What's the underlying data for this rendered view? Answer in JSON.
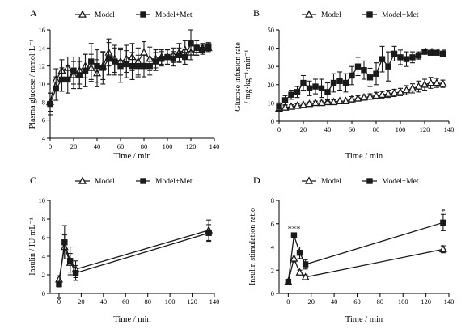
{
  "chart_data": [
    {
      "type": "line",
      "panel_label": "A",
      "xlabel": "Time / min",
      "ylabel": "Plasma glucose / mmol·L⁻¹",
      "xlim": [
        0,
        140
      ],
      "ylim": [
        4,
        16
      ],
      "xticks": [
        0,
        20,
        40,
        60,
        80,
        100,
        120,
        140
      ],
      "yticks": [
        4,
        6,
        8,
        10,
        12,
        14,
        16
      ],
      "series": [
        {
          "name": "Model",
          "marker": "triangle",
          "x": [
            0,
            5,
            10,
            15,
            20,
            25,
            30,
            35,
            40,
            45,
            50,
            55,
            60,
            65,
            70,
            75,
            80,
            85,
            90,
            95,
            100,
            105,
            110,
            115,
            120,
            125,
            130,
            135
          ],
          "y": [
            8.0,
            10.5,
            11.5,
            11.8,
            11.0,
            11.5,
            12.0,
            11.8,
            11.2,
            12.0,
            13.5,
            12.8,
            12.5,
            12.8,
            13.0,
            12.5,
            13.5,
            12.8,
            12.8,
            13.0,
            13.0,
            13.2,
            13.5,
            13.8,
            13.5,
            13.8,
            14.0,
            14.0
          ],
          "err": [
            1.0,
            1.2,
            1.2,
            1.2,
            1.5,
            1.5,
            1.3,
            1.5,
            1.5,
            1.5,
            1.5,
            1.5,
            1.5,
            1.5,
            1.5,
            1.5,
            1.2,
            1.3,
            1.0,
            0.8,
            0.8,
            0.8,
            1.0,
            1.0,
            0.8,
            0.6,
            0.5,
            0.4
          ]
        },
        {
          "name": "Model+Met",
          "marker": "square",
          "x": [
            0,
            5,
            10,
            15,
            20,
            25,
            30,
            35,
            40,
            45,
            50,
            55,
            60,
            65,
            70,
            75,
            80,
            85,
            90,
            95,
            100,
            105,
            110,
            115,
            120,
            125,
            130,
            135
          ],
          "y": [
            7.8,
            9.5,
            10.5,
            10.5,
            11.5,
            11.0,
            11.5,
            12.5,
            12.0,
            11.8,
            12.8,
            12.5,
            12.0,
            12.2,
            12.0,
            12.0,
            12.0,
            12.0,
            12.5,
            12.8,
            13.0,
            12.8,
            13.2,
            13.0,
            14.5,
            14.0,
            13.8,
            14.2
          ],
          "err": [
            1.2,
            1.3,
            1.3,
            1.5,
            1.5,
            1.5,
            1.8,
            2.0,
            1.8,
            1.8,
            1.8,
            1.5,
            1.8,
            1.5,
            1.5,
            1.2,
            1.2,
            1.0,
            1.0,
            0.8,
            0.8,
            0.8,
            0.8,
            0.8,
            1.5,
            0.8,
            0.5,
            0.4
          ]
        }
      ],
      "annotations": []
    },
    {
      "type": "line",
      "panel_label": "B",
      "xlabel": "Time / min",
      "ylabel": "Glucose infusion rate / mg·kg⁻¹·min⁻¹",
      "xlim": [
        0,
        140
      ],
      "ylim": [
        0,
        50
      ],
      "xticks": [
        0,
        20,
        40,
        60,
        80,
        100,
        120,
        140
      ],
      "yticks": [
        0,
        10,
        20,
        30,
        40,
        50
      ],
      "series": [
        {
          "name": "Model",
          "marker": "triangle",
          "x": [
            0,
            5,
            10,
            15,
            20,
            25,
            30,
            35,
            40,
            45,
            50,
            55,
            60,
            65,
            70,
            75,
            80,
            85,
            90,
            95,
            100,
            105,
            110,
            115,
            120,
            125,
            130,
            135
          ],
          "y": [
            7,
            7.5,
            8,
            8.5,
            9,
            9.5,
            10,
            10,
            10.5,
            10.5,
            11,
            11,
            12,
            12.5,
            13,
            13.5,
            14,
            14.5,
            15,
            15.5,
            16,
            17,
            18,
            19,
            20,
            21,
            21,
            20.5
          ],
          "err": [
            1,
            1,
            1,
            1,
            1,
            1,
            1,
            1,
            1.2,
            1.2,
            1.2,
            1.2,
            1.5,
            1.5,
            1.5,
            1.5,
            1.8,
            1.8,
            2,
            2,
            2,
            2.5,
            2.5,
            3,
            3,
            3,
            2.5,
            2
          ]
        },
        {
          "name": "Model+Met",
          "marker": "square",
          "x": [
            0,
            5,
            10,
            15,
            20,
            25,
            30,
            35,
            40,
            45,
            50,
            55,
            60,
            65,
            70,
            75,
            80,
            85,
            90,
            95,
            100,
            105,
            110,
            115,
            120,
            125,
            130,
            135
          ],
          "y": [
            8,
            11.5,
            14.5,
            16,
            21,
            18,
            19,
            18,
            16,
            21,
            22,
            21,
            25,
            30,
            28,
            24,
            26,
            34,
            30,
            37,
            35,
            34,
            35,
            36,
            38,
            37.5,
            37.5,
            37
          ],
          "err": [
            2,
            2.5,
            2.5,
            3,
            4,
            4,
            4,
            5,
            5,
            5,
            5,
            5,
            5,
            5,
            5,
            5,
            6,
            7,
            8,
            4,
            4,
            4,
            3,
            2,
            1.2,
            1.2,
            1.2,
            1.2
          ]
        }
      ],
      "annotations": [
        {
          "text": "*",
          "x": 121,
          "y": 39
        },
        {
          "text": "*",
          "x": 126,
          "y": 39
        },
        {
          "text": "*",
          "x": 131,
          "y": 39
        },
        {
          "text": "*",
          "x": 136,
          "y": 38.5
        }
      ]
    },
    {
      "type": "line",
      "panel_label": "C",
      "xlabel": "Time / min",
      "ylabel": "Insulin / IU·mL⁻¹",
      "xlim": [
        -8,
        140
      ],
      "ylim": [
        0,
        10
      ],
      "xticks": [
        0,
        20,
        40,
        60,
        80,
        100,
        120,
        140
      ],
      "yticks": [
        0,
        2,
        4,
        6,
        8,
        10
      ],
      "series": [
        {
          "name": "Model",
          "marker": "triangle",
          "x": [
            0,
            5,
            10,
            15,
            135
          ],
          "y": [
            1.5,
            5.0,
            3.3,
            2.6,
            6.8
          ],
          "err": [
            0.4,
            1.3,
            1.0,
            0.9,
            1.1
          ]
        },
        {
          "name": "Model+Met",
          "marker": "square",
          "x": [
            0,
            5,
            10,
            15,
            135
          ],
          "y": [
            1.0,
            5.5,
            3.5,
            2.2,
            6.5
          ],
          "err": [
            0.3,
            1.8,
            1.5,
            0.8,
            0.9
          ]
        }
      ],
      "annotations": [
        {
          "text": "*",
          "x": 0,
          "y": -0.6
        }
      ]
    },
    {
      "type": "line",
      "panel_label": "D",
      "xlabel": "Time / min",
      "ylabel": "Insulin stimulation ratio",
      "xlim": [
        -8,
        140
      ],
      "ylim": [
        0,
        8
      ],
      "xticks": [
        0,
        20,
        40,
        60,
        80,
        100,
        120,
        140
      ],
      "yticks": [
        0,
        2,
        4,
        6,
        8
      ],
      "series": [
        {
          "name": "Model",
          "marker": "triangle",
          "x": [
            0,
            5,
            10,
            15,
            135
          ],
          "y": [
            1.0,
            3.0,
            1.8,
            1.4,
            3.8
          ],
          "err": [
            0.1,
            0.3,
            0.2,
            0.2,
            0.3
          ]
        },
        {
          "name": "Model+Met",
          "marker": "square",
          "x": [
            0,
            5,
            10,
            15,
            135
          ],
          "y": [
            1.0,
            5.0,
            3.5,
            2.5,
            6.1
          ],
          "err": [
            0.1,
            0.2,
            0.5,
            0.4,
            0.7
          ]
        }
      ],
      "annotations": [
        {
          "text": "***",
          "x": 5,
          "y": 5.6
        },
        {
          "text": "*",
          "x": 135,
          "y": 7.1
        }
      ]
    }
  ]
}
